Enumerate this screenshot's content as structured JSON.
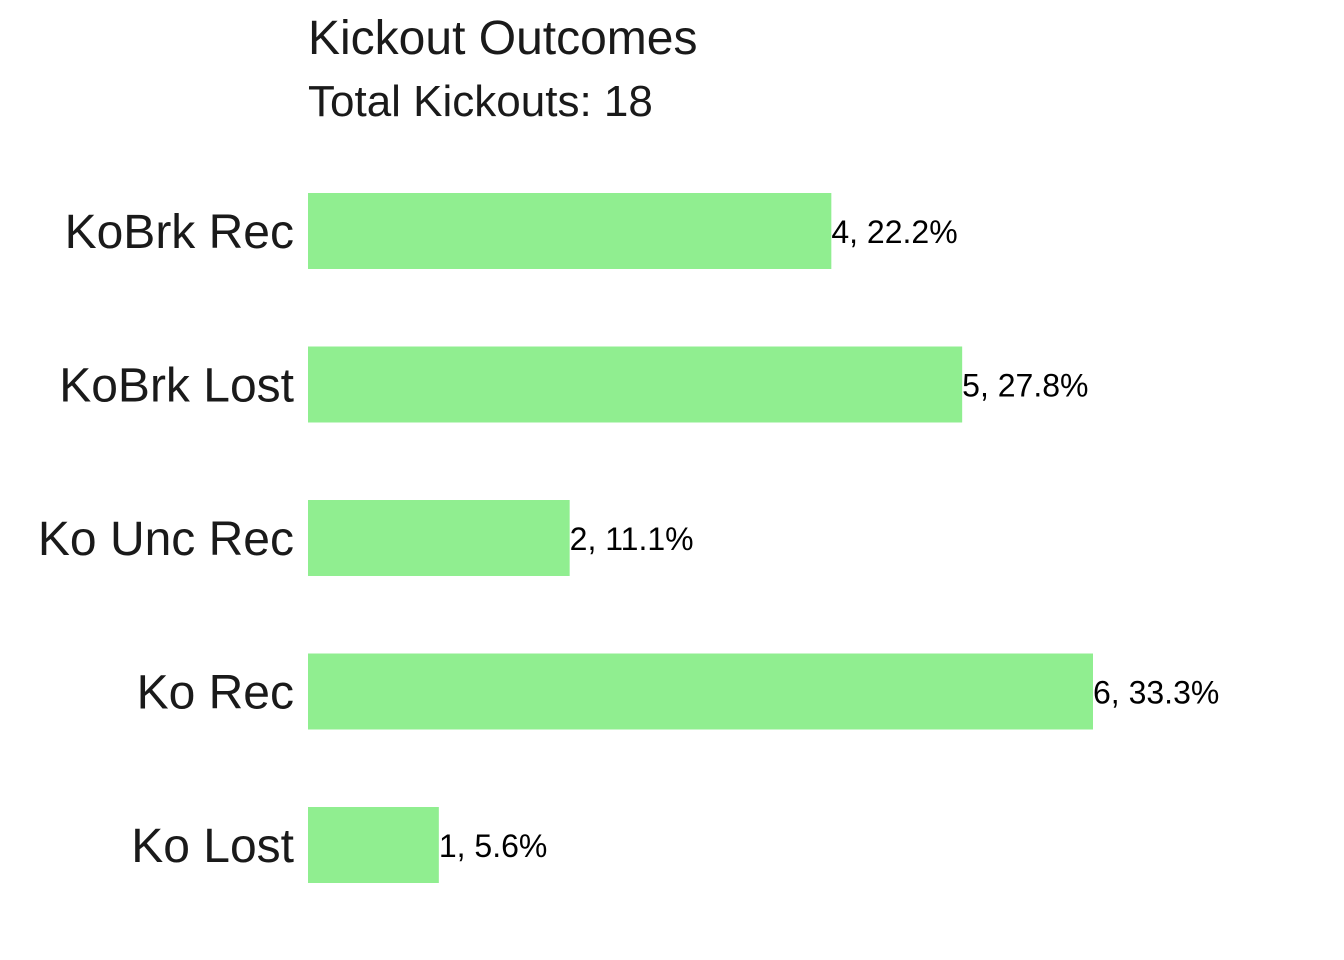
{
  "chart_data": {
    "type": "bar",
    "orientation": "horizontal",
    "title": "Kickout Outcomes",
    "subtitle": "Total Kickouts: 18",
    "xlabel": "",
    "ylabel": "",
    "categories": [
      "KoBrk Rec",
      "KoBrk Lost",
      "Ko Unc Rec",
      "Ko Rec",
      "Ko Lost"
    ],
    "values": [
      4,
      5,
      2,
      6,
      1
    ],
    "data_labels": [
      "4, 22.2%",
      "5, 27.8%",
      "2, 11.1%",
      "6, 33.3%",
      "1, 5.6%"
    ],
    "xlim": [
      0,
      6
    ],
    "grid": false,
    "legend": "none",
    "bar_color": "#90EE90"
  }
}
